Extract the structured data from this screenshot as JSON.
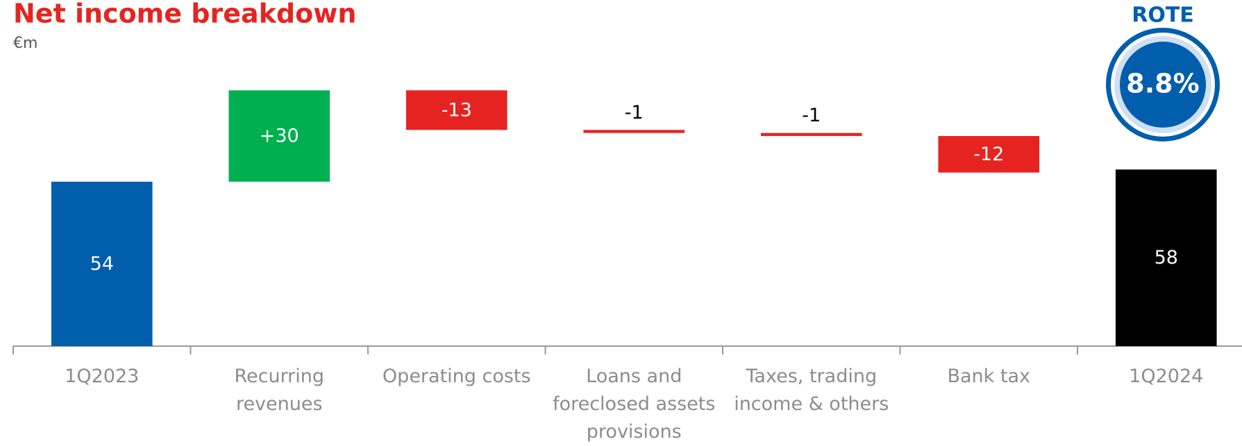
{
  "chart_data": {
    "type": "waterfall",
    "title": "Net income breakdown",
    "subtitle": "€m",
    "categories": [
      "1Q2023",
      "Recurring revenues",
      "Operating costs",
      "Loans and foreclosed assets provisions",
      "Taxes, trading income & others",
      "Bank tax",
      "1Q2024"
    ],
    "values": [
      54,
      30,
      -13,
      -1,
      -1,
      -12,
      58
    ],
    "value_labels": [
      "54",
      "+30",
      "-13",
      "-1",
      "-1",
      "-12",
      "58"
    ],
    "totals": [
      true,
      false,
      false,
      false,
      false,
      false,
      true
    ],
    "colors": [
      "#005ead",
      "#00b050",
      "#e52421",
      "#e52421",
      "#e52421",
      "#e52421",
      "#000000"
    ],
    "ylim": [
      0,
      100
    ],
    "badge": {
      "title": "ROTE",
      "text": "8.8%"
    }
  }
}
